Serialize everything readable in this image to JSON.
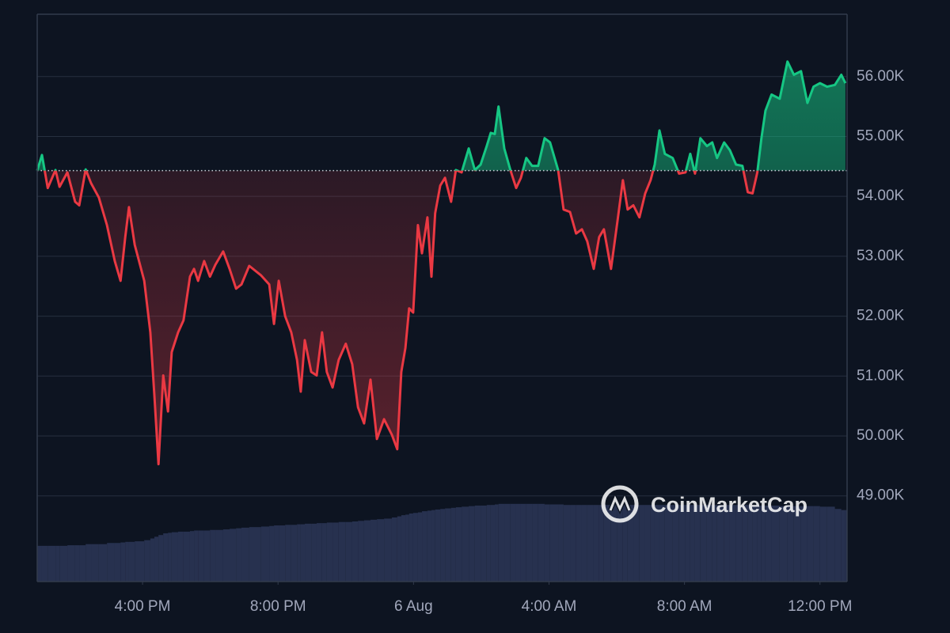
{
  "chart_data": {
    "type": "line",
    "xlim": [
      12.89,
      36.8
    ],
    "xticks": [
      {
        "value": 16,
        "label": "4:00 PM"
      },
      {
        "value": 20,
        "label": "8:00 PM"
      },
      {
        "value": 24,
        "label": "6 Aug"
      },
      {
        "value": 28,
        "label": "4:00 AM"
      },
      {
        "value": 32,
        "label": "8:00 AM"
      },
      {
        "value": 36,
        "label": "12:00 PM"
      }
    ],
    "ylim": [
      47570,
      57040
    ],
    "yticks": [
      {
        "value": 49000,
        "label": "49.00K"
      },
      {
        "value": 50000,
        "label": "50.00K"
      },
      {
        "value": 51000,
        "label": "51.00K"
      },
      {
        "value": 52000,
        "label": "52.00K"
      },
      {
        "value": 53000,
        "label": "53.00K"
      },
      {
        "value": 54000,
        "label": "54.00K"
      },
      {
        "value": 55000,
        "label": "55.00K"
      },
      {
        "value": 56000,
        "label": "56.00K"
      }
    ],
    "y2lim": [
      0,
      100
    ],
    "grid": true,
    "baseline": 54430,
    "x": [
      12.89,
      13.03,
      13.2,
      13.43,
      13.55,
      13.78,
      14.01,
      14.13,
      14.32,
      14.48,
      14.71,
      14.95,
      15.18,
      15.35,
      15.49,
      15.6,
      15.77,
      16.05,
      16.23,
      16.35,
      16.47,
      16.61,
      16.75,
      16.86,
      17.05,
      17.21,
      17.4,
      17.52,
      17.64,
      17.82,
      17.99,
      18.15,
      18.38,
      18.57,
      18.76,
      18.92,
      19.15,
      19.5,
      19.74,
      19.88,
      20.02,
      20.21,
      20.39,
      20.56,
      20.67,
      20.79,
      20.98,
      21.14,
      21.3,
      21.44,
      21.61,
      21.79,
      22.0,
      22.19,
      22.36,
      22.54,
      22.73,
      22.92,
      23.13,
      23.36,
      23.52,
      23.64,
      23.76,
      23.87,
      23.99,
      24.13,
      24.25,
      24.41,
      24.53,
      24.64,
      24.79,
      24.93,
      25.11,
      25.25,
      25.42,
      25.63,
      25.81,
      25.98,
      26.16,
      26.28,
      26.4,
      26.51,
      26.68,
      26.86,
      27.03,
      27.17,
      27.33,
      27.5,
      27.68,
      27.87,
      28.03,
      28.27,
      28.43,
      28.62,
      28.8,
      28.97,
      29.13,
      29.32,
      29.48,
      29.62,
      29.83,
      30.02,
      30.18,
      30.32,
      30.49,
      30.67,
      30.84,
      31.0,
      31.12,
      31.26,
      31.42,
      31.65,
      31.84,
      32.03,
      32.17,
      32.31,
      32.47,
      32.66,
      32.82,
      32.96,
      33.17,
      33.34,
      33.52,
      33.71,
      33.87,
      34.01,
      34.15,
      34.27,
      34.39,
      34.57,
      34.81,
      35.04,
      35.23,
      35.44,
      35.63,
      35.81,
      36.0,
      36.21,
      36.44,
      36.63,
      36.75
    ],
    "series": [
      {
        "color_above": "#16c784",
        "color_below": "#ea3943",
        "values": [
          54430,
          54690,
          54140,
          54440,
          54160,
          54400,
          53910,
          53850,
          54450,
          54220,
          53980,
          53520,
          52920,
          52590,
          53320,
          53820,
          53190,
          52590,
          51730,
          50680,
          49530,
          51010,
          50410,
          51400,
          51730,
          51930,
          52660,
          52790,
          52590,
          52920,
          52660,
          52860,
          53080,
          52790,
          52460,
          52530,
          52840,
          52680,
          52530,
          51870,
          52590,
          52000,
          51730,
          51270,
          50740,
          51600,
          51070,
          51010,
          51730,
          51070,
          50810,
          51270,
          51540,
          51200,
          50480,
          50210,
          50940,
          49950,
          50280,
          50020,
          49780,
          51070,
          51470,
          52130,
          52060,
          53520,
          53050,
          53650,
          52660,
          53720,
          54180,
          54310,
          53910,
          54440,
          54400,
          54800,
          54440,
          54530,
          54840,
          55060,
          55040,
          55500,
          54800,
          54440,
          54140,
          54310,
          54640,
          54510,
          54510,
          54970,
          54900,
          54440,
          53780,
          53740,
          53380,
          53450,
          53250,
          52790,
          53320,
          53450,
          52790,
          53580,
          54270,
          53780,
          53850,
          53650,
          54050,
          54270,
          54530,
          55100,
          54710,
          54640,
          54380,
          54400,
          54710,
          54380,
          54970,
          54840,
          54900,
          54640,
          54900,
          54770,
          54530,
          54510,
          54070,
          54050,
          54400,
          54970,
          55430,
          55700,
          55630,
          56250,
          56030,
          56090,
          55560,
          55830,
          55890,
          55830,
          55860,
          56030,
          55890
        ]
      },
      {
        "axis": "y2",
        "color": "#27314f",
        "values": [
          6.3,
          6.3,
          6.3,
          6.3,
          6.3,
          6.4,
          6.4,
          6.4,
          6.6,
          6.6,
          6.6,
          6.8,
          6.8,
          6.9,
          7.0,
          7.0,
          7.1,
          7.3,
          7.6,
          7.9,
          8.2,
          8.5,
          8.6,
          8.7,
          8.8,
          8.8,
          8.9,
          9.0,
          9.0,
          9.0,
          9.1,
          9.1,
          9.2,
          9.3,
          9.4,
          9.5,
          9.6,
          9.7,
          9.8,
          9.9,
          9.9,
          10.0,
          10.0,
          10.1,
          10.1,
          10.2,
          10.2,
          10.3,
          10.3,
          10.4,
          10.4,
          10.5,
          10.5,
          10.6,
          10.7,
          10.8,
          10.9,
          11.0,
          11.1,
          11.3,
          11.5,
          11.7,
          11.8,
          12.0,
          12.1,
          12.2,
          12.4,
          12.5,
          12.6,
          12.7,
          12.8,
          12.9,
          13.0,
          13.1,
          13.2,
          13.3,
          13.4,
          13.4,
          13.5,
          13.5,
          13.6,
          13.7,
          13.7,
          13.7,
          13.7,
          13.7,
          13.7,
          13.7,
          13.7,
          13.6,
          13.6,
          13.6,
          13.5,
          13.5,
          13.5,
          13.5,
          13.5,
          13.5,
          13.5,
          13.5,
          13.5,
          13.5,
          13.5,
          13.5,
          13.5,
          13.5,
          13.5,
          13.5,
          13.5,
          13.5,
          13.5,
          13.5,
          13.5,
          13.5,
          13.5,
          13.5,
          13.5,
          13.5,
          13.5,
          13.5,
          13.5,
          13.5,
          13.5,
          13.5,
          13.5,
          13.5,
          13.4,
          13.4,
          13.4,
          13.4,
          13.3,
          13.3,
          13.3,
          13.3,
          13.3,
          13.3,
          13.2,
          13.2,
          12.8,
          12.6,
          12.6
        ]
      }
    ]
  },
  "watermark": "CoinMarketCap"
}
